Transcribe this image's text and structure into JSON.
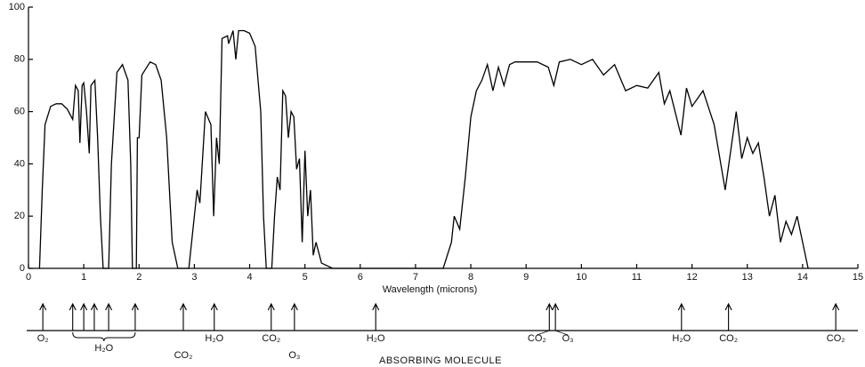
{
  "chart_data": {
    "type": "line",
    "xlabel": "Wavelength (microns)",
    "x": [
      0.2,
      0.25,
      0.3,
      0.4,
      0.5,
      0.6,
      0.7,
      0.8,
      0.85,
      0.9,
      0.93,
      0.97,
      1.0,
      1.05,
      1.1,
      1.13,
      1.2,
      1.25,
      1.3,
      1.35,
      1.45,
      1.5,
      1.6,
      1.7,
      1.8,
      1.85,
      1.88,
      1.95,
      1.97,
      2.0,
      2.05,
      2.2,
      2.3,
      2.4,
      2.5,
      2.6,
      2.7,
      2.9,
      3.0,
      3.05,
      3.1,
      3.2,
      3.3,
      3.35,
      3.4,
      3.45,
      3.5,
      3.6,
      3.62,
      3.7,
      3.75,
      3.8,
      3.9,
      4.0,
      4.1,
      4.2,
      4.25,
      4.3,
      4.4,
      4.45,
      4.5,
      4.55,
      4.6,
      4.65,
      4.7,
      4.75,
      4.8,
      4.85,
      4.9,
      4.95,
      5.0,
      5.05,
      5.1,
      5.15,
      5.2,
      5.3,
      5.5,
      7.5,
      7.65,
      7.7,
      7.8,
      7.9,
      8.0,
      8.1,
      8.2,
      8.3,
      8.4,
      8.5,
      8.6,
      8.7,
      8.8,
      9.0,
      9.2,
      9.4,
      9.5,
      9.6,
      9.8,
      10.0,
      10.2,
      10.4,
      10.6,
      10.8,
      11.0,
      11.2,
      11.4,
      11.5,
      11.6,
      11.8,
      11.9,
      12.0,
      12.2,
      12.4,
      12.6,
      12.8,
      12.9,
      13.0,
      13.1,
      13.2,
      13.3,
      13.4,
      13.5,
      13.6,
      13.7,
      13.8,
      13.9,
      14.0,
      14.1
    ],
    "values": [
      0,
      30,
      55,
      62,
      63,
      63,
      61,
      57,
      70,
      68,
      48,
      70,
      71,
      60,
      44,
      70,
      72,
      50,
      20,
      0,
      0,
      40,
      75,
      78,
      72,
      40,
      0,
      0,
      50,
      50,
      74,
      79,
      78,
      72,
      50,
      10,
      0,
      0,
      20,
      30,
      25,
      60,
      55,
      20,
      50,
      40,
      88,
      89,
      86,
      91,
      80,
      91,
      91,
      90,
      85,
      60,
      20,
      0,
      0,
      20,
      35,
      30,
      68,
      66,
      50,
      60,
      58,
      38,
      42,
      10,
      45,
      20,
      30,
      5,
      10,
      2,
      0,
      0,
      10,
      20,
      15,
      35,
      58,
      68,
      72,
      78,
      68,
      77,
      70,
      78,
      79,
      79,
      79,
      77,
      70,
      79,
      80,
      78,
      80,
      74,
      78,
      68,
      70,
      69,
      75,
      63,
      68,
      51,
      69,
      62,
      68,
      55,
      30,
      60,
      42,
      50,
      44,
      48,
      35,
      20,
      28,
      10,
      18,
      13,
      20,
      10,
      0
    ],
    "color": "#000000",
    "xlim": [
      0,
      15
    ],
    "xticks": [
      0,
      1,
      2,
      3,
      4,
      5,
      6,
      7,
      8,
      9,
      10,
      11,
      12,
      13,
      14,
      15
    ],
    "ylim": [
      0,
      100
    ],
    "yticks": [
      0,
      20,
      40,
      60,
      80,
      100
    ],
    "absorbers_label": "ABSORBING MOLECULE",
    "absorbers": [
      {
        "label": "O₂",
        "wavelengths": [
          0.26
        ]
      },
      {
        "label": "H₂O",
        "wavelengths": [
          0.8,
          1.0,
          1.19,
          1.45,
          1.93
        ]
      },
      {
        "label": "CO₂",
        "wavelengths": [
          2.8
        ]
      },
      {
        "label": "H₂O",
        "wavelengths": [
          3.36
        ]
      },
      {
        "label": "CO₂",
        "wavelengths": [
          4.39
        ]
      },
      {
        "label": "O₃",
        "wavelengths": [
          4.81
        ]
      },
      {
        "label": "H₂O",
        "wavelengths": [
          6.28
        ]
      },
      {
        "label": "CO₂",
        "wavelengths": [
          9.42
        ]
      },
      {
        "label": "O₃",
        "wavelengths": [
          9.53
        ]
      },
      {
        "label": "H₂O",
        "wavelengths": [
          11.81
        ]
      },
      {
        "label": "CO₂",
        "wavelengths": [
          12.66
        ]
      },
      {
        "label": "CO₂",
        "wavelengths": [
          14.6
        ]
      }
    ]
  }
}
